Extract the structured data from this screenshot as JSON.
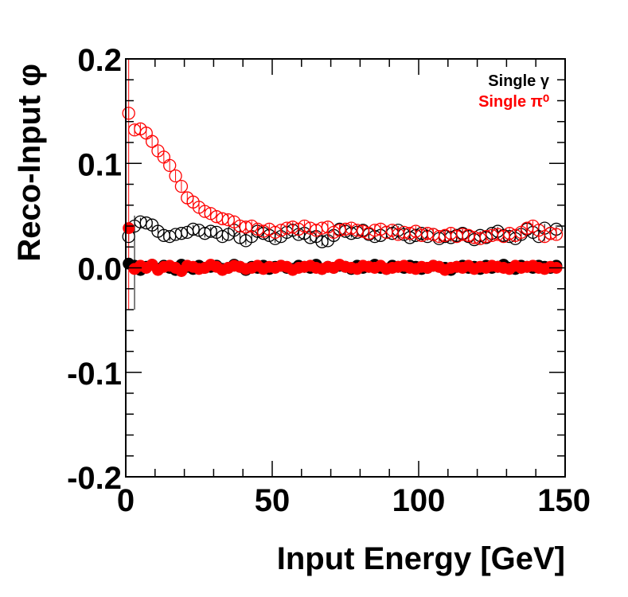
{
  "chart_data": {
    "type": "scatter",
    "title": "",
    "xlabel": "Input Energy [GeV]",
    "ylabel": "Reco-Input φ",
    "xlim": [
      0,
      150
    ],
    "ylim": [
      -0.2,
      0.2
    ],
    "x_ticks": [
      0,
      50,
      100,
      150
    ],
    "x_tick_labels": [
      "0",
      "50",
      "100",
      "150"
    ],
    "y_ticks": [
      -0.2,
      -0.1,
      0.0,
      0.1,
      0.2
    ],
    "y_tick_labels": [
      "-0.2",
      "-0.1",
      "0.0",
      "0.1",
      "0.2"
    ],
    "grid": false,
    "legend_position": "top-right",
    "legend": [
      {
        "label": "Single γ",
        "color": "#000000"
      },
      {
        "label": "Single π⁰",
        "color": "#ff0000"
      }
    ],
    "series": [
      {
        "name": "Single γ (open)",
        "color": "#000000",
        "marker": "open-circle",
        "x": [
          1,
          3,
          5,
          7,
          9,
          11,
          13,
          15,
          17,
          19,
          21,
          23,
          25,
          27,
          29,
          31,
          33,
          35,
          37,
          39,
          41,
          43,
          45,
          47,
          49,
          51,
          53,
          55,
          57,
          59,
          61,
          63,
          65,
          67,
          69,
          71,
          73,
          75,
          77,
          79,
          81,
          83,
          85,
          87,
          89,
          91,
          93,
          95,
          97,
          99,
          101,
          103,
          105,
          107,
          109,
          111,
          113,
          115,
          117,
          119,
          121,
          123,
          125,
          127,
          129,
          131,
          133,
          135,
          137,
          139,
          141,
          143,
          145,
          147
        ],
        "y": [
          0.03,
          0.04,
          0.044,
          0.043,
          0.041,
          0.035,
          0.031,
          0.03,
          0.032,
          0.033,
          0.034,
          0.037,
          0.036,
          0.033,
          0.035,
          0.034,
          0.03,
          0.032,
          0.036,
          0.029,
          0.026,
          0.03,
          0.035,
          0.033,
          0.031,
          0.028,
          0.03,
          0.034,
          0.036,
          0.032,
          0.033,
          0.029,
          0.03,
          0.025,
          0.026,
          0.031,
          0.037,
          0.035,
          0.033,
          0.034,
          0.036,
          0.032,
          0.03,
          0.031,
          0.034,
          0.033,
          0.036,
          0.032,
          0.029,
          0.031,
          0.033,
          0.03,
          0.032,
          0.028,
          0.03,
          0.029,
          0.031,
          0.033,
          0.03,
          0.027,
          0.031,
          0.029,
          0.033,
          0.035,
          0.031,
          0.03,
          0.028,
          0.032,
          0.037,
          0.034,
          0.03,
          0.038,
          0.033,
          0.037
        ],
        "y_err": 0.004
      },
      {
        "name": "Single π⁰ (open)",
        "color": "#ff0000",
        "marker": "open-circle",
        "x": [
          1,
          3,
          5,
          7,
          9,
          11,
          13,
          15,
          17,
          19,
          21,
          23,
          25,
          27,
          29,
          31,
          33,
          35,
          37,
          39,
          41,
          43,
          45,
          47,
          49,
          51,
          53,
          55,
          57,
          59,
          61,
          63,
          65,
          67,
          69,
          71,
          73,
          75,
          77,
          79,
          81,
          83,
          85,
          87,
          89,
          91,
          93,
          95,
          97,
          99,
          101,
          103,
          105,
          107,
          109,
          111,
          113,
          115,
          117,
          119,
          121,
          123,
          125,
          127,
          129,
          131,
          133,
          135,
          137,
          139,
          141,
          143,
          145,
          147
        ],
        "y": [
          0.148,
          0.132,
          0.133,
          0.129,
          0.121,
          0.112,
          0.106,
          0.098,
          0.088,
          0.078,
          0.067,
          0.063,
          0.058,
          0.054,
          0.052,
          0.049,
          0.047,
          0.046,
          0.044,
          0.04,
          0.039,
          0.04,
          0.037,
          0.035,
          0.037,
          0.034,
          0.036,
          0.038,
          0.039,
          0.037,
          0.04,
          0.038,
          0.036,
          0.038,
          0.039,
          0.034,
          0.036,
          0.037,
          0.038,
          0.036,
          0.035,
          0.033,
          0.036,
          0.037,
          0.034,
          0.036,
          0.032,
          0.034,
          0.033,
          0.035,
          0.031,
          0.033,
          0.032,
          0.03,
          0.031,
          0.033,
          0.03,
          0.032,
          0.031,
          0.029,
          0.028,
          0.03,
          0.031,
          0.032,
          0.03,
          0.033,
          0.031,
          0.034,
          0.038,
          0.04,
          0.036,
          0.03,
          0.033,
          0.032
        ],
        "y_err": 0.005
      },
      {
        "name": "Single γ (filled)",
        "color": "#000000",
        "marker": "filled-circle",
        "x": [
          1,
          3,
          5,
          7,
          9,
          11,
          13,
          15,
          17,
          19,
          21,
          23,
          25,
          27,
          29,
          31,
          33,
          35,
          37,
          39,
          41,
          43,
          45,
          47,
          49,
          51,
          53,
          55,
          57,
          59,
          61,
          63,
          65,
          67,
          69,
          71,
          73,
          75,
          77,
          79,
          81,
          83,
          85,
          87,
          89,
          91,
          93,
          95,
          97,
          99,
          101,
          103,
          105,
          107,
          109,
          111,
          113,
          115,
          117,
          119,
          121,
          123,
          125,
          127,
          129,
          131,
          133,
          135,
          137,
          139,
          141,
          143,
          145,
          147
        ],
        "y": [
          0.004,
          0.002,
          -0.002,
          0.001,
          0.003,
          -0.001,
          0.002,
          0.0,
          -0.002,
          0.003,
          0.001,
          -0.001,
          0.002,
          0.0,
          0.001,
          0.002,
          -0.001,
          0.0,
          0.003,
          0.001,
          -0.002,
          0.001,
          0.0,
          0.002,
          -0.001,
          0.001,
          0.002,
          0.0,
          -0.001,
          0.002,
          0.001,
          0.0,
          0.003,
          -0.001,
          0.001,
          0.0,
          0.002,
          0.001,
          -0.001,
          0.002,
          0.0,
          0.001,
          0.003,
          0.0,
          -0.001,
          0.002,
          0.001,
          0.0,
          0.002,
          0.001,
          -0.001,
          0.0,
          0.002,
          0.001,
          0.0,
          -0.002,
          0.001,
          0.002,
          0.0,
          0.001,
          -0.001,
          0.002,
          0.0,
          0.001,
          0.003,
          0.0,
          -0.001,
          0.002,
          0.001,
          0.0,
          0.002,
          0.001,
          0.0,
          0.002
        ],
        "y_err": 0.002
      },
      {
        "name": "Single π⁰ (filled)",
        "color": "#ff0000",
        "marker": "filled-circle",
        "x": [
          1,
          3,
          5,
          7,
          9,
          11,
          13,
          15,
          17,
          19,
          21,
          23,
          25,
          27,
          29,
          31,
          33,
          35,
          37,
          39,
          41,
          43,
          45,
          47,
          49,
          51,
          53,
          55,
          57,
          59,
          61,
          63,
          65,
          67,
          69,
          71,
          73,
          75,
          77,
          79,
          81,
          83,
          85,
          87,
          89,
          91,
          93,
          95,
          97,
          99,
          101,
          103,
          105,
          107,
          109,
          111,
          113,
          115,
          117,
          119,
          121,
          123,
          125,
          127,
          129,
          131,
          133,
          135,
          137,
          139,
          141,
          143,
          145,
          147
        ],
        "y": [
          0.038,
          -0.001,
          0.002,
          0.0,
          0.003,
          -0.002,
          0.001,
          0.002,
          0.0,
          -0.003,
          0.002,
          0.001,
          -0.001,
          0.0,
          0.003,
          0.001,
          -0.002,
          0.0,
          0.002,
          0.001,
          -0.001,
          0.0,
          0.002,
          -0.001,
          0.001,
          0.0,
          0.002,
          0.001,
          -0.002,
          0.0,
          0.001,
          0.002,
          0.0,
          -0.001,
          0.001,
          0.0,
          0.003,
          0.001,
          0.0,
          -0.001,
          0.002,
          0.001,
          0.0,
          0.002,
          -0.001,
          0.0,
          0.001,
          0.002,
          0.0,
          -0.001,
          0.001,
          0.0,
          0.002,
          0.001,
          -0.002,
          0.0,
          0.001,
          0.0,
          0.002,
          -0.001,
          0.001,
          0.0,
          0.002,
          0.001,
          0.0,
          -0.001,
          0.002,
          0.0,
          0.001,
          0.002,
          0.0,
          -0.001,
          0.001,
          0.0
        ],
        "y_err": 0.002
      }
    ]
  }
}
